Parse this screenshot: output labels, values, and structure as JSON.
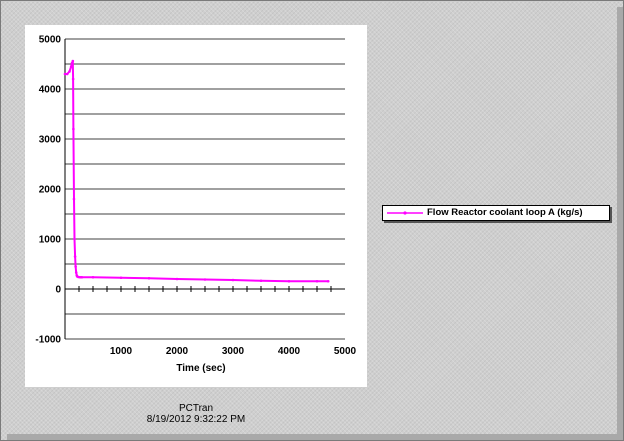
{
  "colors": {
    "series": "#ff00ff",
    "window_bg": "#cfcfcf"
  },
  "footer": {
    "app_name": "PCTran",
    "timestamp": "8/19/2012 9:32:22 PM"
  },
  "chart_data": {
    "type": "line",
    "xlabel": "Time (sec)",
    "ylabel": "",
    "xlim": [
      0,
      5000
    ],
    "ylim": [
      -1000,
      5000
    ],
    "x_ticks": [
      1000,
      2000,
      3000,
      4000,
      5000
    ],
    "y_ticks": [
      -1000,
      0,
      1000,
      2000,
      3000,
      4000,
      5000
    ],
    "grid": "horizontal",
    "legend_position": "right",
    "series": [
      {
        "name": "Flow Reactor coolant loop A (kg/s)",
        "color": "#ff00ff",
        "x": [
          0,
          40,
          80,
          110,
          125,
          140,
          145,
          150,
          160,
          170,
          180,
          190,
          200,
          210,
          220,
          240,
          270,
          300,
          500,
          1000,
          1500,
          2000,
          2500,
          3000,
          3500,
          4000,
          4500,
          4700
        ],
        "y": [
          4300,
          4300,
          4350,
          4450,
          4520,
          4560,
          4200,
          3200,
          1800,
          1000,
          650,
          450,
          330,
          270,
          250,
          240,
          235,
          235,
          235,
          225,
          215,
          200,
          190,
          180,
          165,
          155,
          155,
          155
        ]
      }
    ]
  }
}
